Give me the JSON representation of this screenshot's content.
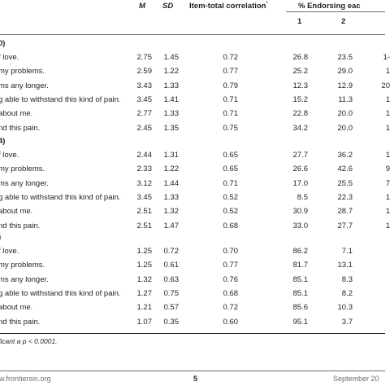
{
  "header": {
    "col_m": "M",
    "col_sd": "SD",
    "col_itc": "Item-total correlation",
    "col_itc_sup": "*",
    "col_pct": "% Endorsing eac",
    "sub_1": "1",
    "sub_2": "2"
  },
  "sections": [
    {
      "label": "0)",
      "rows": [
        {
          "label": "f love.",
          "m": "2.75",
          "sd": "1.45",
          "itc": "0.72",
          "p1": "26.8",
          "p2": "23.5",
          "p3": "1-"
        },
        {
          "label": "my problems.",
          "m": "2.59",
          "sd": "1.22",
          "itc": "0.77",
          "p1": "25.2",
          "p2": "29.0",
          "p3": "1"
        },
        {
          "label": "ms any longer.",
          "m": "3.43",
          "sd": "1.33",
          "itc": "0.79",
          "p1": "12.3",
          "p2": "12.9",
          "p3": "20"
        },
        {
          "label": "g able to withstand this kind of pain.",
          "m": "3.45",
          "sd": "1.41",
          "itc": "0.71",
          "p1": "15.2",
          "p2": "11.3",
          "p3": "1"
        },
        {
          "label": "about me.",
          "m": "2.77",
          "sd": "1.33",
          "itc": "0.71",
          "p1": "22.8",
          "p2": "20.0",
          "p3": "1"
        },
        {
          "label": "nd this pain.",
          "m": "2.45",
          "sd": "1.35",
          "itc": "0.75",
          "p1": "34.2",
          "p2": "20.0",
          "p3": "1"
        }
      ]
    },
    {
      "label": "4)",
      "rows": [
        {
          "label": "f love.",
          "m": "2.44",
          "sd": "1.31",
          "itc": "0.65",
          "p1": "27.7",
          "p2": "36.2",
          "p3": "1"
        },
        {
          "label": "my problems.",
          "m": "2.33",
          "sd": "1.22",
          "itc": "0.65",
          "p1": "26.6",
          "p2": "42.6",
          "p3": "9"
        },
        {
          "label": "ms any longer.",
          "m": "3.12",
          "sd": "1.44",
          "itc": "0.71",
          "p1": "17.0",
          "p2": "25.5",
          "p3": "7"
        },
        {
          "label": "g able to withstand this kind of pain.",
          "m": "3.45",
          "sd": "1.33",
          "itc": "0.52",
          "p1": "8.5",
          "p2": "22.3",
          "p3": "1"
        },
        {
          "label": "about me.",
          "m": "2.51",
          "sd": "1.32",
          "itc": "0.52",
          "p1": "30.9",
          "p2": "28.7",
          "p3": "1"
        },
        {
          "label": "nd this pain.",
          "m": "2.51",
          "sd": "1.47",
          "itc": "0.68",
          "p1": "33.0",
          "p2": "27.7",
          "p3": "1"
        }
      ]
    },
    {
      "label": ")",
      "rows": [
        {
          "label": "f love.",
          "m": "1.25",
          "sd": "0.72",
          "itc": "0.70",
          "p1": "86.2",
          "p2": "7.1",
          "p3": ""
        },
        {
          "label": "my problems.",
          "m": "1.25",
          "sd": "0.61",
          "itc": "0.77",
          "p1": "81.7",
          "p2": "13.1",
          "p3": ""
        },
        {
          "label": "ms any longer.",
          "m": "1.32",
          "sd": "0.63",
          "itc": "0.76",
          "p1": "85.1",
          "p2": "8.3",
          "p3": ""
        },
        {
          "label": "g able to withstand this kind of pain.",
          "m": "1.27",
          "sd": "0.75",
          "itc": "0.68",
          "p1": "85.1",
          "p2": "8.2",
          "p3": ""
        },
        {
          "label": "about me.",
          "m": "1.21",
          "sd": "0.57",
          "itc": "0.72",
          "p1": "85.6",
          "p2": "10.3",
          "p3": ""
        },
        {
          "label": "nd this pain.",
          "m": "1.07",
          "sd": "0.35",
          "itc": "0.60",
          "p1": "95.1",
          "p2": "3.7",
          "p3": ""
        }
      ]
    }
  ],
  "footnote": "ficant a p < 0.0001.",
  "footer": {
    "url": "w.frontiersin.org",
    "page": "5",
    "date": "September 20"
  }
}
